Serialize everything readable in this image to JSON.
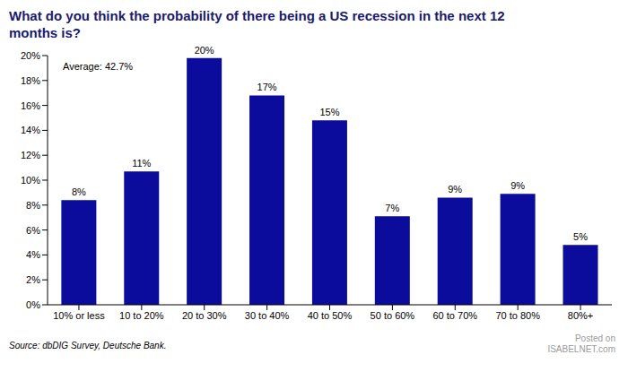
{
  "chart_data": {
    "type": "bar",
    "title": "What do you think the probability of there being a US recession in the next 12 months is?",
    "annotation": "Average: 42.7%",
    "source": "Source: dbDIG Survey, Deutsche Bank.",
    "watermark": [
      "Posted on",
      "ISABELNET.com"
    ],
    "categories": [
      "10% or less",
      "10 to 20%",
      "20 to 30%",
      "30 to 40%",
      "40 to 50%",
      "50 to 60%",
      "60 to 70%",
      "70 to 80%",
      "80%+"
    ],
    "values": [
      8.4,
      10.7,
      19.8,
      16.8,
      14.8,
      7.1,
      8.6,
      8.9,
      4.8
    ],
    "value_labels": [
      "8%",
      "11%",
      "20%",
      "17%",
      "15%",
      "7%",
      "9%",
      "9%",
      "5%"
    ],
    "data_labels": true,
    "color": "#0c0c9c",
    "ylim": [
      0,
      20
    ],
    "yticks": [
      {
        "value": 0,
        "label": "0%"
      },
      {
        "value": 2,
        "label": "2%"
      },
      {
        "value": 4,
        "label": "4%"
      },
      {
        "value": 6,
        "label": "6%"
      },
      {
        "value": 8,
        "label": "8%"
      },
      {
        "value": 10,
        "label": "10%"
      },
      {
        "value": 12,
        "label": "12%"
      },
      {
        "value": 14,
        "label": "14%"
      },
      {
        "value": 16,
        "label": "16%"
      },
      {
        "value": 18,
        "label": "18%"
      },
      {
        "value": 20,
        "label": "20%"
      }
    ],
    "grid": false
  }
}
